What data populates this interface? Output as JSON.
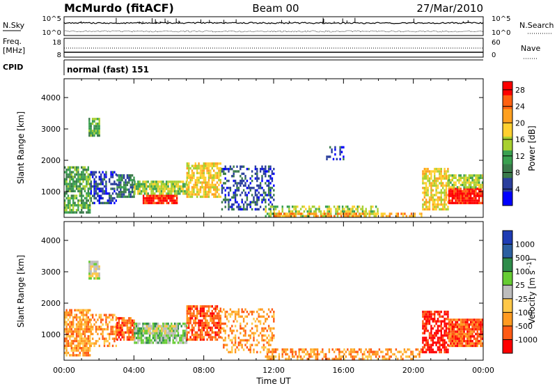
{
  "header": {
    "station": "McMurdo (fitACF)",
    "beam": "Beam 00",
    "date": "27/Mar/2010"
  },
  "noise_panel": {
    "left_label": "N.Sky",
    "right_label": "N.Search",
    "left_ticks": [
      "10^5",
      "10^0"
    ],
    "right_ticks": [
      "10^5",
      "10^0"
    ]
  },
  "freq_panel": {
    "left_label_1": "Freq.",
    "left_label_2": "[MHz]",
    "left_ticks": [
      "18",
      "8"
    ],
    "right_label": "Nave",
    "right_ticks": [
      "60",
      "0"
    ]
  },
  "cpid_panel": {
    "label": "CPID",
    "value": "normal (fast) 151"
  },
  "colors": {
    "power": [
      "#0000ff",
      "#2a3e9c",
      "#3a7a4a",
      "#3aa050",
      "#a8d030",
      "#ffd030",
      "#ffa020",
      "#ff6010",
      "#ff0000"
    ],
    "velocity": [
      "#ff0000",
      "#ff5a14",
      "#ff9a20",
      "#ffc848",
      "#bdbdbd",
      "#66cc33",
      "#2e8c4a",
      "#2c5fa0",
      "#1e3cb4"
    ]
  },
  "chart_data": [
    {
      "type": "heatmap",
      "name": "power",
      "ylabel": "Slant Range [km]",
      "xlim": [
        "00:00",
        "24:00"
      ],
      "ylim": [
        180,
        4600
      ],
      "yticks": [
        "1000",
        "2000",
        "3000",
        "4000"
      ],
      "xticks": [
        "00:00",
        "04:00",
        "08:00",
        "12:00",
        "16:00",
        "20:00",
        "00:00"
      ],
      "colorbar": {
        "label": "Power [dB]",
        "ticks": [
          "4",
          "8",
          "12",
          "16",
          "20",
          "24",
          "28"
        ],
        "range": [
          0,
          30
        ]
      },
      "regions": [
        {
          "t": [
            0.0,
            1.5
          ],
          "r": [
            300,
            1800
          ],
          "level": 3,
          "density": 0.75
        },
        {
          "t": [
            1.4,
            2.0
          ],
          "r": [
            2750,
            3300
          ],
          "level": 3,
          "density": 0.85
        },
        {
          "t": [
            1.5,
            3.0
          ],
          "r": [
            600,
            1600
          ],
          "level": 1,
          "density": 0.55
        },
        {
          "t": [
            3.0,
            4.0
          ],
          "r": [
            800,
            1550
          ],
          "level": 2,
          "density": 0.8
        },
        {
          "t": [
            4.0,
            7.0
          ],
          "r": [
            900,
            1350
          ],
          "level": 4,
          "density": 0.85
        },
        {
          "t": [
            4.5,
            6.5
          ],
          "r": [
            600,
            900
          ],
          "level": 8,
          "density": 0.9
        },
        {
          "t": [
            7.0,
            9.0
          ],
          "r": [
            800,
            1900
          ],
          "level": 5,
          "density": 0.75
        },
        {
          "t": [
            9.0,
            12.0
          ],
          "r": [
            400,
            1800
          ],
          "level": 1,
          "density": 0.45
        },
        {
          "t": [
            11.5,
            18.0
          ],
          "r": [
            180,
            550
          ],
          "level": 4,
          "density": 0.55
        },
        {
          "t": [
            12.0,
            20.5
          ],
          "r": [
            180,
            320
          ],
          "level": 6,
          "density": 0.5
        },
        {
          "t": [
            15.0,
            16.0
          ],
          "r": [
            2000,
            2400
          ],
          "level": 1,
          "density": 0.4
        },
        {
          "t": [
            20.5,
            22.0
          ],
          "r": [
            400,
            1700
          ],
          "level": 5,
          "density": 0.7
        },
        {
          "t": [
            22.0,
            24.0
          ],
          "r": [
            600,
            1100
          ],
          "level": 8,
          "density": 0.95
        },
        {
          "t": [
            22.0,
            24.0
          ],
          "r": [
            1100,
            1500
          ],
          "level": 4,
          "density": 0.8
        }
      ]
    },
    {
      "type": "heatmap",
      "name": "velocity",
      "ylabel": "Slant Range [km]",
      "xlabel": "Time UT",
      "xlim": [
        "00:00",
        "24:00"
      ],
      "ylim": [
        180,
        4600
      ],
      "yticks": [
        "1000",
        "2000",
        "3000",
        "4000"
      ],
      "xticks": [
        "00:00",
        "04:00",
        "08:00",
        "12:00",
        "16:00",
        "20:00",
        "00:00"
      ],
      "colorbar": {
        "label": "Velocity [m s^-1]",
        "ticks": [
          "1000",
          "500",
          "100",
          "25",
          "-25",
          "-100",
          "-500",
          "-1000"
        ]
      },
      "regions": [
        {
          "t": [
            0.0,
            1.5
          ],
          "r": [
            300,
            1800
          ],
          "level": 2,
          "density": 0.75
        },
        {
          "t": [
            1.4,
            2.0
          ],
          "r": [
            2750,
            3300
          ],
          "level": 4,
          "density": 0.85
        },
        {
          "t": [
            1.5,
            3.0
          ],
          "r": [
            600,
            1600
          ],
          "level": 2,
          "density": 0.5
        },
        {
          "t": [
            3.0,
            4.0
          ],
          "r": [
            800,
            1550
          ],
          "level": 1,
          "density": 0.8
        },
        {
          "t": [
            4.0,
            7.0
          ],
          "r": [
            700,
            1350
          ],
          "level": 5,
          "density": 0.75
        },
        {
          "t": [
            4.5,
            6.5
          ],
          "r": [
            1000,
            1300
          ],
          "level": 4,
          "density": 0.7
        },
        {
          "t": [
            7.0,
            9.0
          ],
          "r": [
            800,
            1900
          ],
          "level": 1,
          "density": 0.75
        },
        {
          "t": [
            9.0,
            12.0
          ],
          "r": [
            400,
            1800
          ],
          "level": 2,
          "density": 0.4
        },
        {
          "t": [
            11.5,
            20.5
          ],
          "r": [
            180,
            550
          ],
          "level": 2,
          "density": 0.5
        },
        {
          "t": [
            20.5,
            22.0
          ],
          "r": [
            400,
            1700
          ],
          "level": 0,
          "density": 0.7
        },
        {
          "t": [
            22.0,
            24.0
          ],
          "r": [
            600,
            1500
          ],
          "level": 1,
          "density": 0.9
        }
      ]
    }
  ]
}
